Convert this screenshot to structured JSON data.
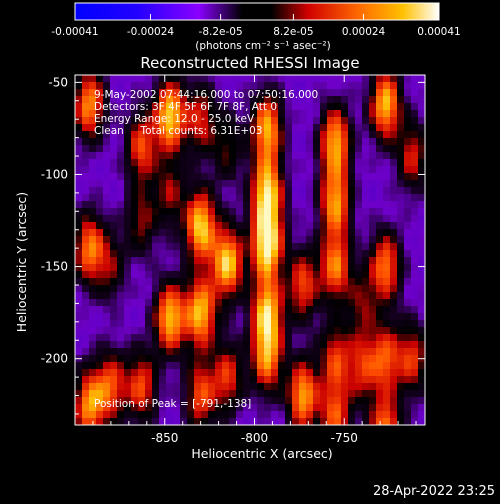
{
  "colorbar": {
    "ticks": [
      "-0.00041",
      "-0.00024",
      "-8.2e-05",
      "8.2e-05",
      "0.00024",
      "0.00041"
    ],
    "unit_text": "(photons cm⁻² s⁻¹ asec⁻²)",
    "range": [
      -0.00041,
      0.00041
    ]
  },
  "chart_data": {
    "type": "heatmap",
    "title": "Reconstructed RHESSI Image",
    "xlabel": "Heliocentric X (arcsec)",
    "ylabel": "Heliocentric Y (arcsec)",
    "xlim": [
      -900,
      -705
    ],
    "ylim": [
      -236,
      -46
    ],
    "x_ticks": [
      "-850",
      "-800",
      "-750"
    ],
    "y_ticks": [
      "-50",
      "-100",
      "-150",
      "-200"
    ],
    "annotations": [
      "9-May-2002 07:44:16.000 to 07:50:16.000",
      "Detectors: 3F 4F 5F 6F 7F 8F, Att 0",
      "Energy Range: 12.0 - 25.0 keV",
      "Clean     Total counts: 6.31E+03"
    ],
    "peak_label": "Position of Peak = [-791,-138]",
    "peak": [
      -791,
      -138
    ],
    "ridges": [
      {
        "x": -892,
        "peaks": [
          [
            -62,
            0.75
          ],
          [
            -140,
            0.7
          ],
          [
            -225,
            0.75
          ]
        ]
      },
      {
        "x": -880,
        "peaks": [
          [
            -150,
            0.35
          ],
          [
            -215,
            0.6
          ]
        ]
      },
      {
        "x": -863,
        "peaks": [
          [
            -85,
            0.6
          ],
          [
            -125,
            0.4
          ],
          [
            -215,
            0.6
          ]
        ]
      },
      {
        "x": -847,
        "peaks": [
          [
            -68,
            0.9
          ],
          [
            -110,
            0.4
          ],
          [
            -178,
            0.85
          ]
        ]
      },
      {
        "x": -830,
        "peaks": [
          [
            -70,
            0.5
          ],
          [
            -128,
            0.9
          ],
          [
            -175,
            0.85
          ],
          [
            -220,
            0.6
          ]
        ]
      },
      {
        "x": -815,
        "peaks": [
          [
            -85,
            0.35
          ],
          [
            -148,
            0.9
          ],
          [
            -210,
            0.55
          ]
        ]
      },
      {
        "x": -793,
        "peaks": [
          [
            -75,
            0.8
          ],
          [
            -110,
            0.9
          ],
          [
            -138,
            1.0
          ],
          [
            -175,
            0.85
          ],
          [
            -200,
            0.7
          ]
        ]
      },
      {
        "x": -773,
        "peaks": [
          [
            -160,
            0.6
          ],
          [
            -220,
            0.8
          ]
        ]
      },
      {
        "x": -755,
        "peaks": [
          [
            -82,
            0.8
          ],
          [
            -115,
            0.75
          ],
          [
            -150,
            0.7
          ],
          [
            -200,
            0.55
          ],
          [
            -232,
            0.6
          ]
        ]
      },
      {
        "x": -740,
        "peaks": [
          [
            -170,
            0.35
          ],
          [
            -205,
            0.5
          ]
        ]
      },
      {
        "x": -727,
        "peaks": [
          [
            -62,
            0.85
          ],
          [
            -150,
            0.7
          ],
          [
            -200,
            0.6
          ],
          [
            -240,
            0.75
          ]
        ]
      },
      {
        "x": -712,
        "peaks": [
          [
            -90,
            0.5
          ],
          [
            -200,
            0.55
          ]
        ]
      }
    ]
  },
  "footer": {
    "timestamp": "28-Apr-2022 23:25"
  }
}
